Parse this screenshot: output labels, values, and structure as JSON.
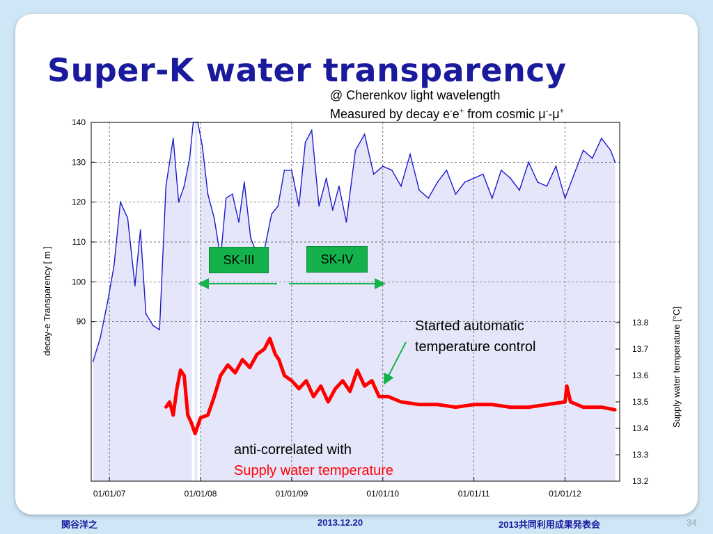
{
  "slide": {
    "title": "Super-K water transparency",
    "note_line1": "@ Cherenkov light wavelength",
    "note_line2_a": "Measured by decay e",
    "note_line2_sup1": "-",
    "note_line2_b": "e",
    "note_line2_sup2": "+",
    "note_line2_c": " from cosmic ",
    "note_line2_mu1": "μ",
    "note_line2_sup3": "-",
    "note_line2_mu2": "μ",
    "note_line2_sup4": "+",
    "sk3_label": "SK-III",
    "sk4_label": "SK-IV",
    "annotation_auto_line1": "Started automatic",
    "annotation_auto_line2": "temperature control",
    "annotation_anti_line1": "anti-correlated with",
    "annotation_anti_line2": "Supply water temperature",
    "footer_author": "関谷洋之",
    "footer_date": "2013.12.20",
    "footer_event": "2013共同利用成果発表会",
    "page_number": "34"
  },
  "colors": {
    "title": "#1a1a9c",
    "transparency_line": "#1a1acc",
    "transparency_fill": "#e6e6fa",
    "temperature": "#ff0000",
    "sk_box": "#13b24a",
    "arrow": "#13b24a"
  },
  "chart_data": {
    "type": "line",
    "x_ticks": [
      "01/01/07",
      "01/01/08",
      "01/01/09",
      "01/01/10",
      "01/01/11",
      "01/01/12"
    ],
    "x_tick_years": [
      2007,
      2008,
      2009,
      2010,
      2011,
      2012
    ],
    "xlim": [
      2006.8,
      2012.6
    ],
    "ylabel": "decay-e Transparency [ m ]",
    "ylim": [
      50,
      140
    ],
    "y_ticks": [
      90,
      100,
      110,
      120,
      130,
      140
    ],
    "y2label": "Supply water temperature [°C]",
    "y2lim": [
      13.2,
      13.8
    ],
    "y2_ticks": [
      13.2,
      13.3,
      13.4,
      13.5,
      13.6,
      13.7,
      13.8
    ],
    "grid": true,
    "series": [
      {
        "axis": "left",
        "x": [
          2006.82,
          2006.9,
          2006.98,
          2007.05,
          2007.12,
          2007.2,
          2007.28,
          2007.34,
          2007.4,
          2007.48,
          2007.55,
          2007.62,
          2007.7,
          2007.76,
          2007.82,
          2007.88,
          2007.92,
          2007.97,
          2008.02,
          2008.08,
          2008.15,
          2008.22,
          2008.28,
          2008.35,
          2008.42,
          2008.48,
          2008.55,
          2008.62,
          2008.7,
          2008.78,
          2008.85,
          2008.92,
          2009.0,
          2009.08,
          2009.15,
          2009.22,
          2009.3,
          2009.38,
          2009.45,
          2009.52,
          2009.6,
          2009.7,
          2009.8,
          2009.9,
          2010.0,
          2010.1,
          2010.2,
          2010.3,
          2010.4,
          2010.5,
          2010.6,
          2010.7,
          2010.8,
          2010.9,
          2011.0,
          2011.1,
          2011.2,
          2011.3,
          2011.4,
          2011.5,
          2011.6,
          2011.7,
          2011.8,
          2011.9,
          2012.0,
          2012.1,
          2012.2,
          2012.3,
          2012.4,
          2012.5,
          2012.55
        ],
        "values": [
          80,
          86,
          95,
          104,
          120,
          116,
          99,
          113,
          92,
          89,
          88,
          124,
          136,
          120,
          124,
          131,
          140,
          140,
          134,
          122,
          116,
          106,
          121,
          122,
          115,
          125,
          111,
          107,
          108,
          117,
          119,
          128,
          128,
          119,
          135,
          138,
          119,
          126,
          118,
          124,
          115,
          133,
          137,
          127,
          129,
          128,
          124,
          132,
          123,
          121,
          125,
          128,
          122,
          125,
          126,
          127,
          121,
          128,
          126,
          123,
          130,
          125,
          124,
          129,
          121,
          127,
          133,
          131,
          136,
          133,
          130
        ]
      },
      {
        "axis": "right",
        "x": [
          2007.62,
          2007.66,
          2007.7,
          2007.74,
          2007.78,
          2007.82,
          2007.86,
          2007.9,
          2007.94,
          2008.0,
          2008.08,
          2008.15,
          2008.22,
          2008.3,
          2008.38,
          2008.46,
          2008.54,
          2008.62,
          2008.7,
          2008.76,
          2008.82,
          2008.86,
          2008.92,
          2009.0,
          2009.08,
          2009.16,
          2009.24,
          2009.32,
          2009.4,
          2009.48,
          2009.56,
          2009.64,
          2009.72,
          2009.8,
          2009.88,
          2009.96,
          2010.06,
          2010.2,
          2010.4,
          2010.6,
          2010.8,
          2011.0,
          2011.2,
          2011.4,
          2011.6,
          2011.8,
          2012.0,
          2012.02,
          2012.06,
          2012.2,
          2012.4,
          2012.55
        ],
        "values": [
          13.48,
          13.5,
          13.45,
          13.55,
          13.62,
          13.6,
          13.45,
          13.42,
          13.38,
          13.44,
          13.45,
          13.52,
          13.6,
          13.64,
          13.61,
          13.66,
          13.63,
          13.68,
          13.7,
          13.74,
          13.68,
          13.66,
          13.6,
          13.58,
          13.55,
          13.58,
          13.52,
          13.56,
          13.5,
          13.55,
          13.58,
          13.54,
          13.62,
          13.56,
          13.58,
          13.52,
          13.52,
          13.5,
          13.49,
          13.49,
          13.48,
          13.49,
          13.49,
          13.48,
          13.48,
          13.49,
          13.5,
          13.56,
          13.5,
          13.48,
          13.48,
          13.47
        ]
      }
    ]
  }
}
